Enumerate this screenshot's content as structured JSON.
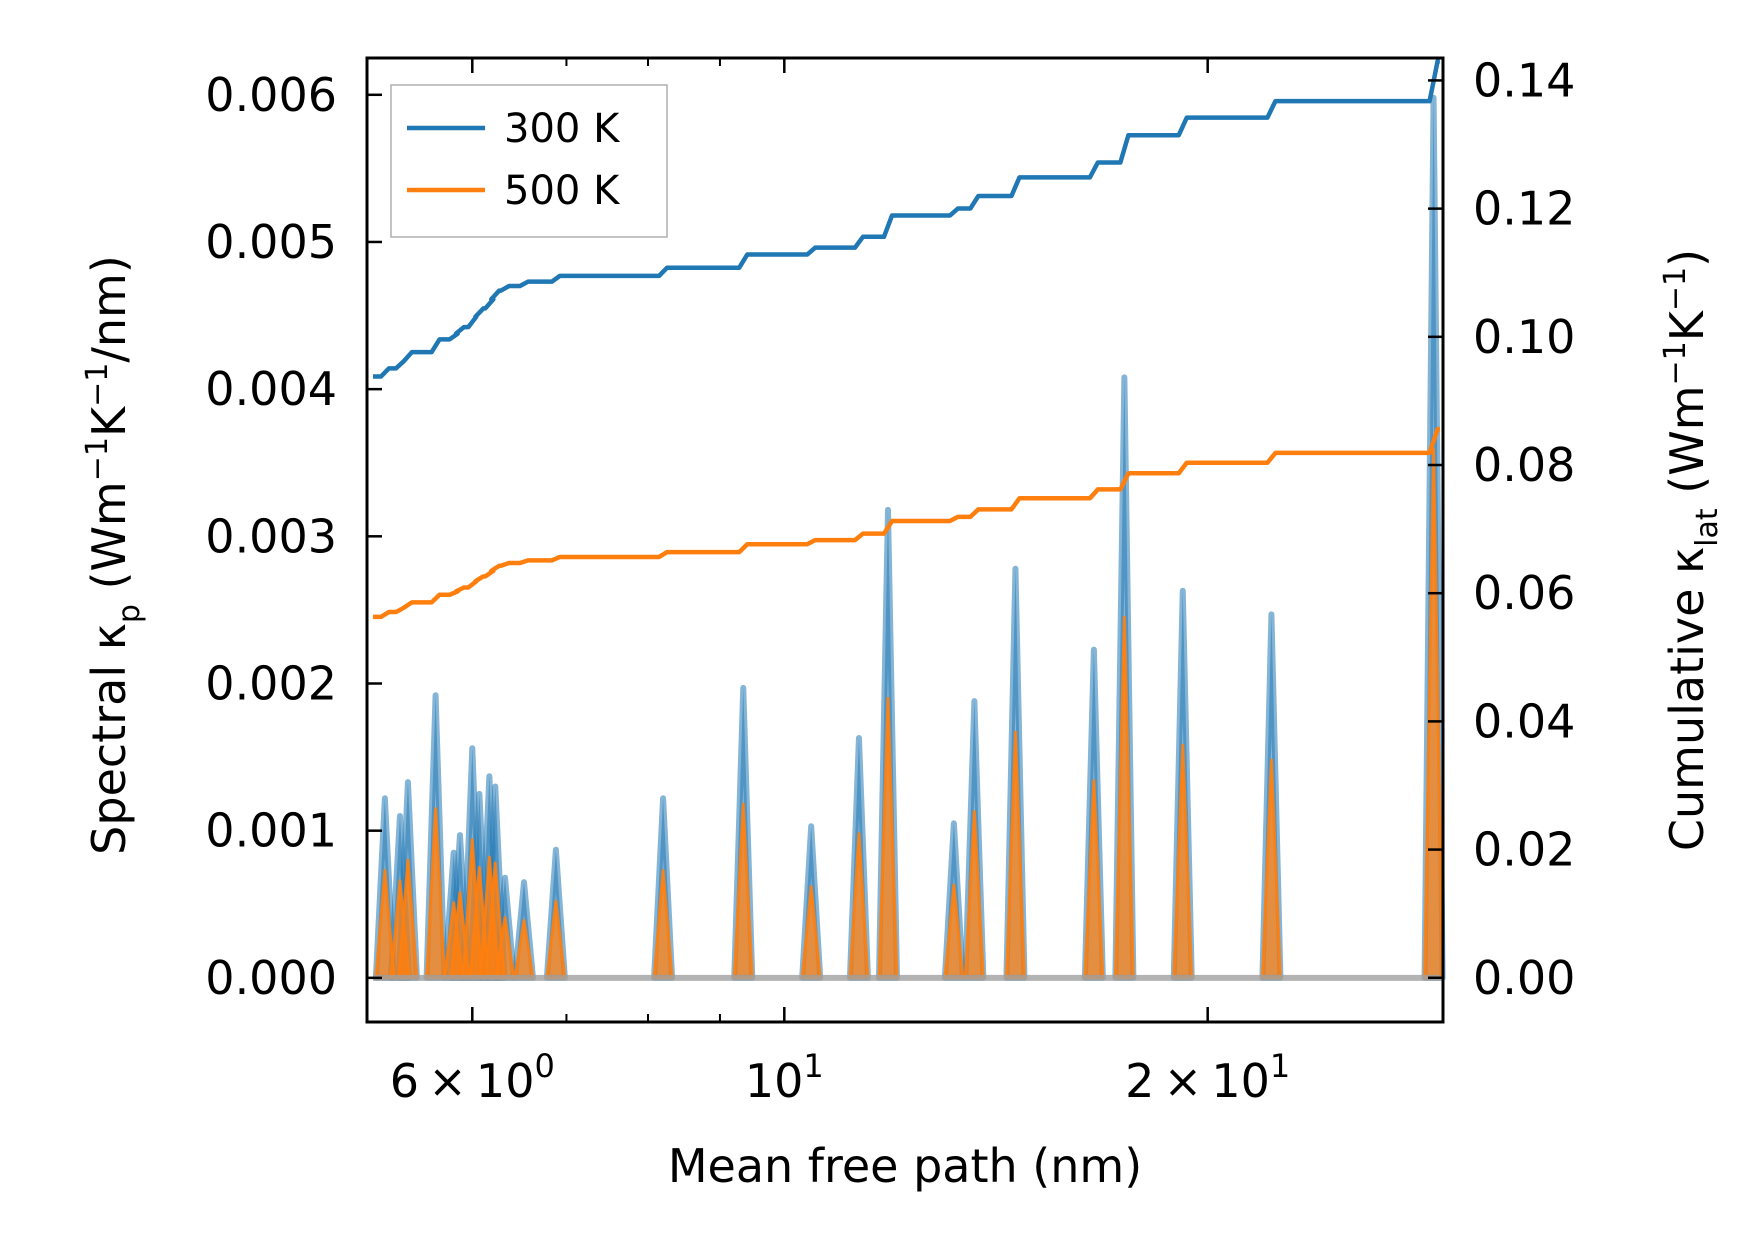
{
  "chart_data": {
    "type": "line",
    "xlabel": "Mean free path (nm)",
    "xscale": "log",
    "xlim": [
      5.05,
      29.4
    ],
    "x_ticks": [
      {
        "value": 6,
        "mantissa": "6",
        "base": "10",
        "exp": "0"
      },
      {
        "value": 10,
        "mantissa": "",
        "base": "10",
        "exp": "1"
      },
      {
        "value": 20,
        "mantissa": "2",
        "base": "10",
        "exp": "1"
      }
    ],
    "x_minor_ticks": [
      7,
      8,
      9
    ],
    "y_left": {
      "label_prefix": "Spectral κ",
      "label_sub": "p",
      "label_unit_open": " (Wm",
      "label_sup1": "−1",
      "label_mid": "K",
      "label_sup2": "−1",
      "label_unit_close": "/nm)",
      "ylim": [
        -0.0003,
        0.00625
      ],
      "ticks": [
        "0.000",
        "0.001",
        "0.002",
        "0.003",
        "0.004",
        "0.005",
        "0.006"
      ]
    },
    "y_right": {
      "label_prefix": "Cumulative κ",
      "label_sub": "lat",
      "label_unit_open": " (Wm",
      "label_sup1": "−1",
      "label_mid": "K",
      "label_sup2": "−1",
      "label_unit_close": ")",
      "ylim": [
        -0.0069,
        0.1435
      ],
      "ticks": [
        "0.00",
        "0.02",
        "0.04",
        "0.06",
        "0.08",
        "0.10",
        "0.12",
        "0.14"
      ]
    },
    "legend": {
      "position": "top-left",
      "entries": [
        "300 K",
        "500 K"
      ]
    },
    "colors": {
      "300 K": "#1f77b4",
      "500 K": "#ff7f0e"
    },
    "spectral_peaks": [
      {
        "mfp": 5.2,
        "k300": 0.00122,
        "k500": 0.00073
      },
      {
        "mfp": 5.33,
        "k300": 0.0011,
        "k500": 0.00066
      },
      {
        "mfp": 5.4,
        "k300": 0.00133,
        "k500": 0.0008
      },
      {
        "mfp": 5.65,
        "k300": 0.00192,
        "k500": 0.00115
      },
      {
        "mfp": 5.82,
        "k300": 0.00085,
        "k500": 0.00051
      },
      {
        "mfp": 5.88,
        "k300": 0.00097,
        "k500": 0.00058
      },
      {
        "mfp": 6.0,
        "k300": 0.00156,
        "k500": 0.00094
      },
      {
        "mfp": 6.07,
        "k300": 0.00125,
        "k500": 0.00075
      },
      {
        "mfp": 6.17,
        "k300": 0.00137,
        "k500": 0.00082
      },
      {
        "mfp": 6.23,
        "k300": 0.0013,
        "k500": 0.00078
      },
      {
        "mfp": 6.33,
        "k300": 0.00068,
        "k500": 0.00041
      },
      {
        "mfp": 6.53,
        "k300": 0.00065,
        "k500": 0.00039
      },
      {
        "mfp": 6.88,
        "k300": 0.00087,
        "k500": 0.00052
      },
      {
        "mfp": 8.2,
        "k300": 0.00122,
        "k500": 0.00073
      },
      {
        "mfp": 9.35,
        "k300": 0.00197,
        "k500": 0.00118
      },
      {
        "mfp": 10.45,
        "k300": 0.00103,
        "k500": 0.00062
      },
      {
        "mfp": 11.3,
        "k300": 0.00163,
        "k500": 0.00098
      },
      {
        "mfp": 11.85,
        "k300": 0.00318,
        "k500": 0.0019
      },
      {
        "mfp": 13.2,
        "k300": 0.00105,
        "k500": 0.00063
      },
      {
        "mfp": 13.65,
        "k300": 0.00188,
        "k500": 0.00113
      },
      {
        "mfp": 14.6,
        "k300": 0.00278,
        "k500": 0.00167
      },
      {
        "mfp": 16.6,
        "k300": 0.00223,
        "k500": 0.00134
      },
      {
        "mfp": 17.45,
        "k300": 0.00408,
        "k500": 0.00245
      },
      {
        "mfp": 19.2,
        "k300": 0.00263,
        "k500": 0.00158
      },
      {
        "mfp": 22.2,
        "k300": 0.00247,
        "k500": 0.00148
      },
      {
        "mfp": 28.95,
        "k300": 0.00598,
        "k500": 0.00359
      }
    ],
    "cumulative_start": {
      "mfp": 5.1,
      "k300": 0.0938,
      "k500": 0.0563
    },
    "cumulative_end": {
      "mfp": 29.25,
      "k300": 0.143,
      "k500": 0.0856
    }
  }
}
